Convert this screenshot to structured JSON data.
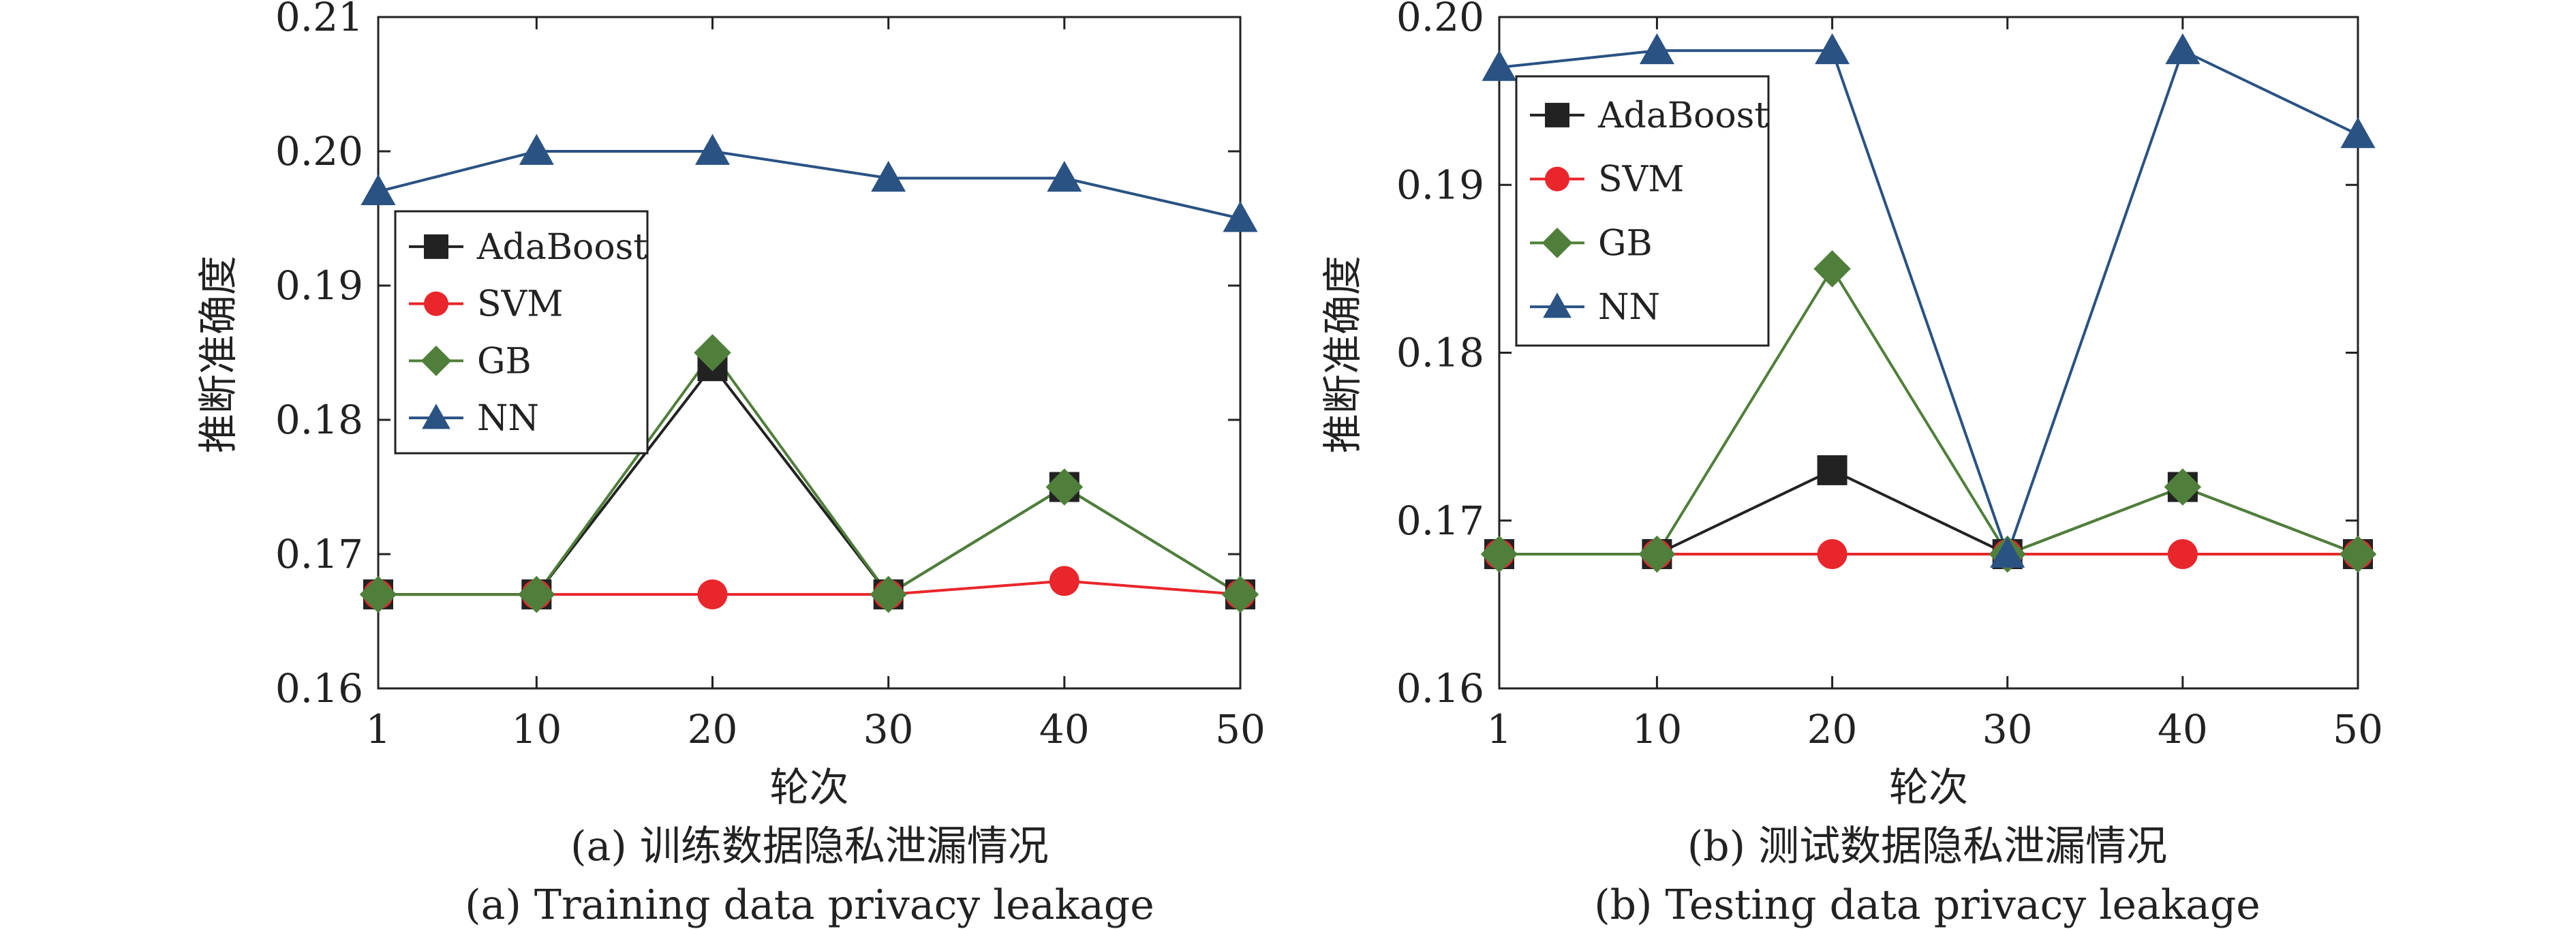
{
  "chart_data": [
    {
      "type": "line",
      "x": [
        1,
        10,
        20,
        30,
        40,
        50
      ],
      "x_tick_labels": [
        "1",
        "10",
        "20",
        "30",
        "40",
        "50"
      ],
      "xlabel": "轮次",
      "ylabel": "推断准确度",
      "ylim": [
        0.16,
        0.21
      ],
      "y_ticks": [
        "0.16",
        "0.17",
        "0.18",
        "0.19",
        "0.20",
        "0.21"
      ],
      "legend_position": "left",
      "grid": false,
      "caption_cn": "(a) 训练数据隐私泄漏情况",
      "caption_en": "(a) Training data privacy leakage",
      "series": [
        {
          "name": "AdaBoost",
          "color": "#222222",
          "marker": "square",
          "values": [
            0.167,
            0.167,
            0.184,
            0.167,
            0.175,
            0.167
          ]
        },
        {
          "name": "SVM",
          "color": "#e8262b",
          "marker": "circle",
          "values": [
            0.167,
            0.167,
            0.167,
            0.167,
            0.168,
            0.167
          ]
        },
        {
          "name": "GB",
          "color": "#4f7f3a",
          "marker": "diamond",
          "values": [
            0.167,
            0.167,
            0.185,
            0.167,
            0.175,
            0.167
          ]
        },
        {
          "name": "NN",
          "color": "#2a5283",
          "marker": "triangle",
          "values": [
            0.197,
            0.2,
            0.2,
            0.198,
            0.198,
            0.195
          ]
        }
      ]
    },
    {
      "type": "line",
      "x": [
        1,
        10,
        20,
        30,
        40,
        50
      ],
      "x_tick_labels": [
        "1",
        "10",
        "20",
        "30",
        "40",
        "50"
      ],
      "xlabel": "轮次",
      "ylabel": "推断准确度",
      "ylim": [
        0.16,
        0.2
      ],
      "y_ticks": [
        "0.16",
        "0.17",
        "0.18",
        "0.19",
        "0.20"
      ],
      "legend_position": "top-left",
      "grid": false,
      "caption_cn": "(b) 测试数据隐私泄漏情况",
      "caption_en": "(b) Testing data privacy leakage",
      "series": [
        {
          "name": "AdaBoost",
          "color": "#222222",
          "marker": "square",
          "values": [
            0.168,
            0.168,
            0.173,
            0.168,
            0.172,
            0.168
          ]
        },
        {
          "name": "SVM",
          "color": "#e8262b",
          "marker": "circle",
          "values": [
            0.168,
            0.168,
            0.168,
            0.168,
            0.168,
            0.168
          ]
        },
        {
          "name": "GB",
          "color": "#4f7f3a",
          "marker": "diamond",
          "values": [
            0.168,
            0.168,
            0.185,
            0.168,
            0.172,
            0.168
          ]
        },
        {
          "name": "NN",
          "color": "#2a5283",
          "marker": "triangle",
          "values": [
            0.197,
            0.198,
            0.198,
            0.168,
            0.198,
            0.193
          ]
        }
      ]
    }
  ]
}
